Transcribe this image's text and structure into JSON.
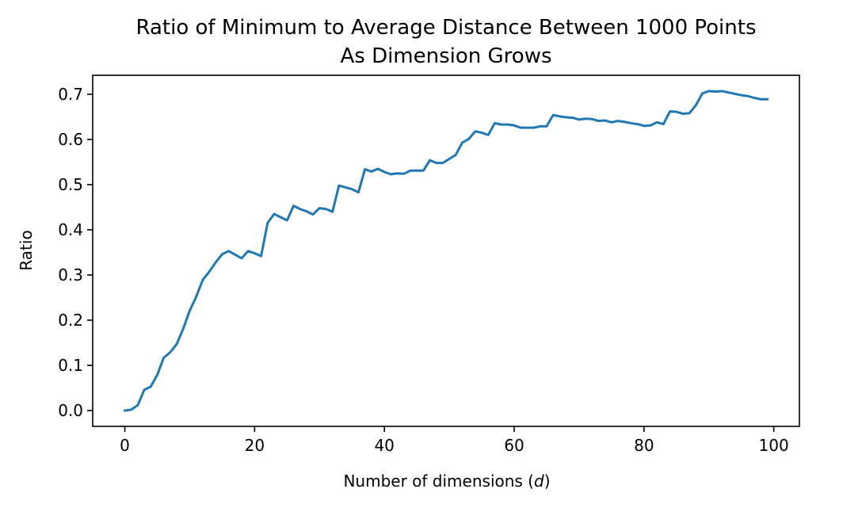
{
  "chart_data": {
    "type": "line",
    "title_line1": "Ratio of Minimum to Average Distance Between 1000 Points",
    "title_line2": "As Dimension Grows",
    "xlabel_prefix": "Number of dimensions (",
    "xlabel_var": "d",
    "xlabel_suffix": ")",
    "ylabel": "Ratio",
    "xlim": [
      -4.95,
      103.95
    ],
    "ylim": [
      -0.035,
      0.742
    ],
    "xticks": [
      0,
      20,
      40,
      60,
      80,
      100
    ],
    "yticks": [
      0.0,
      0.1,
      0.2,
      0.3,
      0.4,
      0.5,
      0.6,
      0.7
    ],
    "ytick_labels": [
      "0.0",
      "0.1",
      "0.2",
      "0.3",
      "0.4",
      "0.5",
      "0.6",
      "0.7"
    ],
    "grid": false,
    "series": [
      {
        "color": "#1f77b4",
        "x": [
          0,
          1,
          2,
          3,
          4,
          5,
          6,
          7,
          8,
          9,
          10,
          11,
          12,
          13,
          14,
          15,
          16,
          17,
          18,
          19,
          20,
          21,
          22,
          23,
          24,
          25,
          26,
          27,
          28,
          29,
          30,
          31,
          32,
          33,
          34,
          35,
          36,
          37,
          38,
          39,
          40,
          41,
          42,
          43,
          44,
          45,
          46,
          47,
          48,
          49,
          50,
          51,
          52,
          53,
          54,
          55,
          56,
          57,
          58,
          59,
          60,
          61,
          62,
          63,
          64,
          65,
          66,
          67,
          68,
          69,
          70,
          71,
          72,
          73,
          74,
          75,
          76,
          77,
          78,
          79,
          80,
          81,
          82,
          83,
          84,
          85,
          86,
          87,
          88,
          89,
          90,
          91,
          92,
          93,
          94,
          95,
          96,
          97,
          98,
          99
        ],
        "y": [
          0.0,
          0.002,
          0.012,
          0.046,
          0.053,
          0.079,
          0.117,
          0.129,
          0.147,
          0.181,
          0.221,
          0.252,
          0.289,
          0.307,
          0.328,
          0.346,
          0.353,
          0.345,
          0.337,
          0.353,
          0.348,
          0.342,
          0.415,
          0.435,
          0.428,
          0.421,
          0.453,
          0.446,
          0.441,
          0.434,
          0.448,
          0.446,
          0.44,
          0.498,
          0.494,
          0.49,
          0.483,
          0.534,
          0.529,
          0.535,
          0.528,
          0.523,
          0.525,
          0.524,
          0.531,
          0.531,
          0.531,
          0.554,
          0.548,
          0.548,
          0.557,
          0.566,
          0.593,
          0.601,
          0.618,
          0.615,
          0.61,
          0.636,
          0.633,
          0.633,
          0.631,
          0.626,
          0.626,
          0.626,
          0.629,
          0.629,
          0.654,
          0.651,
          0.649,
          0.648,
          0.644,
          0.646,
          0.645,
          0.641,
          0.642,
          0.638,
          0.641,
          0.639,
          0.636,
          0.634,
          0.63,
          0.631,
          0.638,
          0.634,
          0.662,
          0.661,
          0.657,
          0.658,
          0.676,
          0.702,
          0.707,
          0.706,
          0.707,
          0.704,
          0.701,
          0.698,
          0.696,
          0.692,
          0.689,
          0.689
        ]
      }
    ]
  }
}
